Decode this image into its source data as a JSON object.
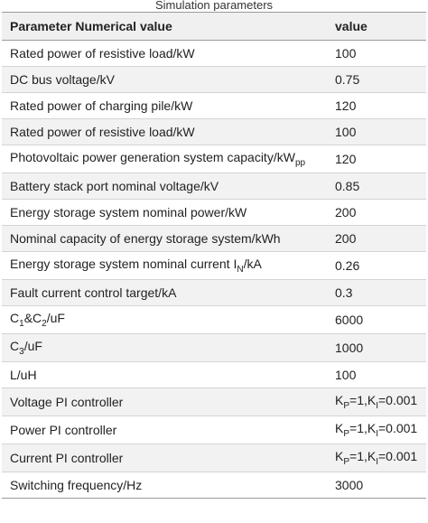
{
  "caption": "Simulation parameters",
  "table": {
    "headers": [
      "Parameter Numerical value",
      "value"
    ],
    "rows": [
      {
        "param": "Rated power of resistive load/kW",
        "value": "100"
      },
      {
        "param": "DC bus voltage/kV",
        "value": "0.75"
      },
      {
        "param": "Rated power of charging pile/kW",
        "value": "120"
      },
      {
        "param": "Rated power of resistive load/kW",
        "value": "100"
      },
      {
        "param": "Photovoltaic power generation system capacity/kW",
        "param_sub": "pp",
        "value": "120"
      },
      {
        "param": "Battery stack port nominal voltage/kV",
        "value": "0.85"
      },
      {
        "param": "Energy storage system nominal power/kW",
        "value": "200"
      },
      {
        "param": "Nominal capacity of energy storage system/kWh",
        "value": "200"
      },
      {
        "param": "Energy storage system nominal current I",
        "param_sub": "N",
        "param_suffix": "/kA",
        "value": "0.26"
      },
      {
        "param": "Fault current control target/kA",
        "value": "0.3"
      },
      {
        "param": "C",
        "param_sub": "1",
        "param_mid": "&C",
        "param_sub2": "2",
        "param_suffix": "/uF",
        "value": "6000"
      },
      {
        "param": "C",
        "param_sub": "3",
        "param_suffix": "/uF",
        "value": "1000"
      },
      {
        "param": "L/uH",
        "value": "100"
      },
      {
        "param": "Voltage PI controller",
        "value_a": "K",
        "value_sub_a": "P",
        "value_b": "=1,K",
        "value_sub_b": "I",
        "value_c": "=0.001"
      },
      {
        "param": "Power PI controller",
        "value_a": "K",
        "value_sub_a": "P",
        "value_b": "=1,K",
        "value_sub_b": "I",
        "value_c": "=0.001"
      },
      {
        "param": "Current PI controller",
        "value_a": "K",
        "value_sub_a": "P",
        "value_b": "=1,K",
        "value_sub_b": "I",
        "value_c": "=0.001"
      },
      {
        "param": "Switching frequency/Hz",
        "value": "3000"
      }
    ]
  }
}
